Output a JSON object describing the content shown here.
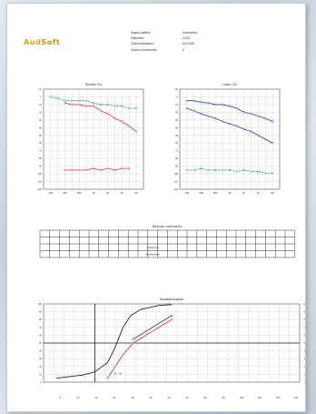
{
  "logo": {
    "part1": "Aud",
    "part2": "Soft"
  },
  "header_info": [
    {
      "label": "Naam patient:",
      "value": ": Schneider"
    },
    {
      "label": "Patientnr:",
      "value": ": 1234"
    },
    {
      "label": "Geboortedatum:",
      "value": ": 01/1935"
    },
    {
      "label": "Datum onderzoek:",
      "value": ": 2"
    }
  ],
  "grid_caption": "Binaurale onderzoeken",
  "table_row_labels": [
    "Linkerkant",
    "Rechterkant"
  ],
  "colors": {
    "red": "#d23c3c",
    "blue": "#2f3e8c",
    "green": "#2e8a6e",
    "grid": "#bfbfbf",
    "axis": "#333333"
  },
  "chart_data": [
    {
      "type": "line",
      "title": "Rechter Oor",
      "x": [
        "125",
        "250",
        "500",
        "1K",
        "2K",
        "4K",
        "8K"
      ],
      "ylim": [
        -10,
        120
      ],
      "y_ticks": [
        "-10",
        "0",
        "10",
        "20",
        "30",
        "40",
        "50",
        "60",
        "70",
        "80",
        "90",
        "100",
        "110",
        "120"
      ],
      "series": [
        {
          "color": "green",
          "dashed": true,
          "points": [
            [
              0,
              0
            ],
            [
              0.5,
              2
            ],
            [
              1,
              5
            ],
            [
              1.5,
              5
            ],
            [
              2,
              5
            ],
            [
              2.5,
              5
            ],
            [
              3,
              8
            ],
            [
              3.5,
              10
            ],
            [
              4,
              10
            ],
            [
              4.5,
              12
            ],
            [
              5,
              12
            ],
            [
              5.5,
              15
            ],
            [
              6,
              15
            ]
          ]
        },
        {
          "color": "red",
          "dashed": false,
          "points": [
            [
              1,
              8
            ],
            [
              1.5,
              10
            ],
            [
              2,
              10
            ],
            [
              2.5,
              12
            ],
            [
              3,
              12
            ],
            [
              3.5,
              18
            ],
            [
              4,
              22
            ],
            [
              4.5,
              28
            ],
            [
              5,
              32
            ],
            [
              5.5,
              38
            ],
            [
              6,
              45
            ]
          ]
        },
        {
          "color": "red",
          "dashed": false,
          "points": [
            [
              1,
              95
            ],
            [
              1.5,
              95
            ],
            [
              2,
              95
            ],
            [
              2.5,
              95
            ],
            [
              3,
              93
            ],
            [
              3.5,
              95
            ],
            [
              4,
              93
            ],
            [
              4.5,
              95
            ],
            [
              5,
              93
            ],
            [
              5.5,
              93
            ]
          ]
        }
      ]
    },
    {
      "type": "line",
      "title": "Linker Oor",
      "x": [
        "125",
        "250",
        "500",
        "1K",
        "2K",
        "4K",
        "8K"
      ],
      "ylim": [
        -10,
        120
      ],
      "y_ticks": [
        "-10",
        "0",
        "10",
        "20",
        "30",
        "40",
        "50",
        "60",
        "70",
        "80",
        "90",
        "100",
        "110",
        "120"
      ],
      "series": [
        {
          "color": "blue",
          "dashed": false,
          "points": [
            [
              0,
              5
            ],
            [
              0.5,
              5
            ],
            [
              1,
              7
            ],
            [
              1.5,
              8
            ],
            [
              2,
              10
            ],
            [
              2.5,
              10
            ],
            [
              3,
              12
            ],
            [
              3.5,
              15
            ],
            [
              4,
              20
            ],
            [
              4.5,
              22
            ],
            [
              5,
              25
            ],
            [
              5.5,
              28
            ],
            [
              6,
              32
            ]
          ]
        },
        {
          "color": "blue",
          "dashed": false,
          "points": [
            [
              0,
              15
            ],
            [
              0.5,
              18
            ],
            [
              1,
              22
            ],
            [
              1.5,
              25
            ],
            [
              2,
              28
            ],
            [
              2.5,
              32
            ],
            [
              3,
              35
            ],
            [
              3.5,
              38
            ],
            [
              4,
              42
            ],
            [
              4.5,
              45
            ],
            [
              5,
              50
            ],
            [
              5.5,
              55
            ],
            [
              6,
              60
            ]
          ]
        },
        {
          "color": "green",
          "dashed": true,
          "points": [
            [
              0,
              95
            ],
            [
              0.5,
              95
            ],
            [
              1,
              93
            ],
            [
              1.5,
              95
            ],
            [
              2,
              95
            ],
            [
              2.5,
              95
            ],
            [
              3,
              95
            ],
            [
              3.5,
              97
            ],
            [
              4,
              95
            ],
            [
              4.5,
              97
            ],
            [
              5,
              97
            ],
            [
              5.5,
              99
            ],
            [
              6,
              99
            ]
          ]
        }
      ]
    },
    {
      "type": "line",
      "title": "Spraakaudiogram",
      "x_ticks": [
        "0",
        "10",
        "20",
        "30",
        "40",
        "50",
        "60",
        "70",
        "80",
        "90",
        "100",
        "110",
        "120",
        "130"
      ],
      "xlim": [
        0,
        130
      ],
      "ylim": [
        0,
        100
      ],
      "y_ticks": [
        "0",
        "10",
        "20",
        "30",
        "40",
        "50",
        "60",
        "70",
        "80",
        "90",
        "100"
      ],
      "series": [
        {
          "color": "black",
          "dashed": false,
          "points": [
            [
              5,
              5
            ],
            [
              10,
              7
            ],
            [
              15,
              9
            ],
            [
              20,
              13
            ],
            [
              25,
              25
            ],
            [
              28,
              45
            ],
            [
              31,
              70
            ],
            [
              34,
              85
            ],
            [
              38,
              93
            ],
            [
              45,
              98
            ],
            [
              50,
              99
            ]
          ]
        },
        {
          "color": "red",
          "dashed": false,
          "points": [
            [
              25,
              5
            ],
            [
              28,
              20
            ],
            [
              31,
              35
            ],
            [
              35,
              50
            ],
            [
              40,
              60
            ],
            [
              45,
              70
            ],
            [
              50,
              80
            ]
          ]
        },
        {
          "color": "blue",
          "dashed": false,
          "points": [
            [
              35,
              55
            ],
            [
              40,
              65
            ],
            [
              45,
              75
            ],
            [
              50,
              85
            ]
          ]
        }
      ],
      "markers": [
        {
          "x": 28,
          "y": 10,
          "label": "30"
        },
        {
          "x": 30,
          "y": 10,
          "label": "36"
        }
      ]
    }
  ]
}
